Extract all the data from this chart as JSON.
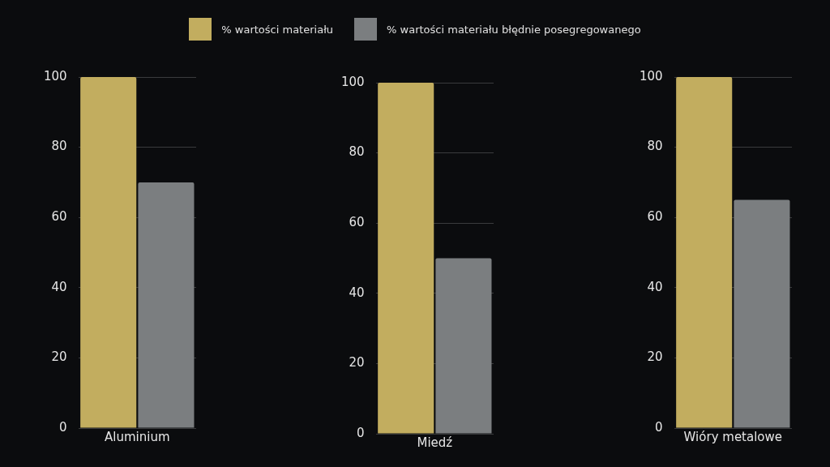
{
  "chart_data": [
    {
      "type": "bar",
      "categories": [
        "Aluminium"
      ],
      "series": [
        {
          "name": "% wartości materiału",
          "color": "#c2ad5f",
          "values": [
            100
          ]
        },
        {
          "name": "% wartości materiału błędnie posegregowanego",
          "color": "#7b7e80",
          "values": [
            70
          ]
        }
      ],
      "ylim": [
        0,
        100
      ],
      "yticks": [
        0,
        20,
        40,
        60,
        80,
        100
      ],
      "grid": "y",
      "legend": "top"
    },
    {
      "type": "bar",
      "categories": [
        "Miedź"
      ],
      "series": [
        {
          "color": "#c2ad5f",
          "values": [
            100
          ]
        },
        {
          "color": "#7b7e80",
          "values": [
            50
          ]
        }
      ],
      "ylim": [
        0,
        100
      ],
      "yticks": [
        0,
        20,
        40,
        60,
        80,
        100
      ],
      "grid": "y"
    },
    {
      "type": "bar",
      "categories": [
        "Wióry metalowe"
      ],
      "series": [
        {
          "color": "#c2ad5f",
          "values": [
            100
          ]
        },
        {
          "color": "#7b7e80",
          "values": [
            65
          ]
        }
      ],
      "ylim": [
        0,
        100
      ],
      "yticks": [
        0,
        20,
        40,
        60,
        80,
        100
      ],
      "grid": "y"
    }
  ]
}
